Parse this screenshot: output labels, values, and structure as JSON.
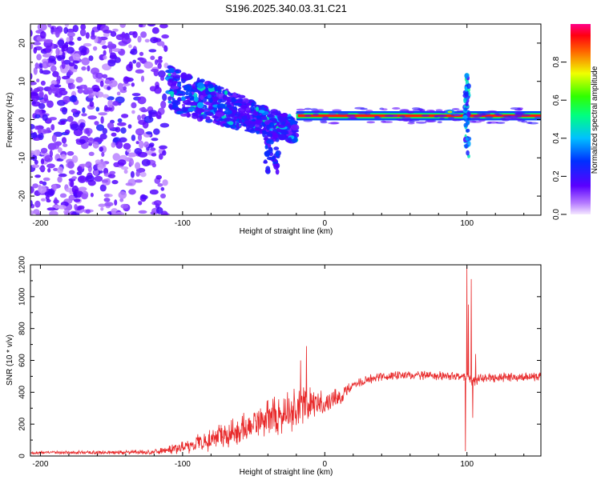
{
  "title": "S196.2025.340.03.31.C21",
  "colors": {
    "signal": "#e8001c",
    "snr_line": "#e8292a",
    "scatter": "#7a00e0",
    "frame": "#000000"
  },
  "chart_data": [
    {
      "type": "heatmap",
      "title": "S196.2025.340.03.31.C21",
      "xlabel": "Height of straight line (km)",
      "ylabel": "Frequency (Hz)",
      "xlim": [
        -207,
        152
      ],
      "ylim": [
        -25,
        25
      ],
      "xticks": [
        -200,
        -100,
        0,
        100
      ],
      "xtick_labels": [
        "-200",
        "-100",
        "0",
        "100"
      ],
      "yticks": [
        20,
        10,
        0,
        -10,
        -20
      ],
      "ytick_labels": [
        "20",
        "10",
        "0",
        "-10",
        "-20"
      ],
      "colorbar": {
        "label": "Normalized spectral amplitude",
        "ticks": [
          0.0,
          0.2,
          0.4,
          0.6,
          0.8
        ],
        "tick_labels": [
          "0.0",
          "0.2",
          "0.4",
          "0.6",
          "0.8"
        ],
        "range": [
          0,
          1
        ]
      },
      "features": [
        {
          "name": "noise",
          "x_range": [
            -207,
            -110
          ],
          "freq_range": [
            -25,
            25
          ],
          "amplitude": 0.2
        },
        {
          "name": "chirp",
          "x_range": [
            -110,
            -20
          ],
          "freq_start": 8,
          "freq_end": -3,
          "amplitude": 0.45
        },
        {
          "name": "tone",
          "x_range": [
            -20,
            152
          ],
          "freq": 1,
          "amplitude": 0.95
        },
        {
          "name": "spike",
          "x": 100,
          "freq_range": [
            -10,
            12
          ],
          "amplitude": 0.5
        }
      ]
    },
    {
      "type": "line",
      "xlabel": "Height of straight line (km)",
      "ylabel": "SNR (10 * v/v)",
      "xlim": [
        -207,
        152
      ],
      "ylim": [
        0,
        1200
      ],
      "xticks": [
        -200,
        -100,
        0,
        100
      ],
      "xtick_labels": [
        "-200",
        "-100",
        "0",
        "100"
      ],
      "yticks": [
        0,
        200,
        400,
        600,
        800,
        1000,
        1200
      ],
      "ytick_labels": [
        "0",
        "200",
        "400",
        "600",
        "800",
        "1000",
        "1200"
      ],
      "series": [
        {
          "name": "SNR",
          "envelope_x": [
            -207,
            -120,
            -100,
            -80,
            -60,
            -40,
            -25,
            -15,
            0,
            10,
            20,
            30,
            40,
            60,
            80,
            95,
            100,
            103,
            106,
            110,
            130,
            152
          ],
          "envelope_y": [
            20,
            25,
            50,
            100,
            170,
            240,
            280,
            320,
            330,
            370,
            440,
            480,
            500,
            505,
            505,
            505,
            500,
            470,
            480,
            490,
            495,
            500
          ],
          "noise_amp": [
            10,
            15,
            40,
            80,
            100,
            120,
            140,
            120,
            80,
            60,
            30,
            30,
            30,
            30,
            30,
            30,
            30,
            30,
            40,
            30,
            30,
            30
          ],
          "spikes": [
            {
              "x": -17,
              "y": 600
            },
            {
              "x": -13,
              "y": 690
            },
            {
              "x": 99,
              "y": 30
            },
            {
              "x": 100,
              "y": 1190
            },
            {
              "x": 101,
              "y": 950
            },
            {
              "x": 103,
              "y": 1110
            },
            {
              "x": 104,
              "y": 240
            },
            {
              "x": 106,
              "y": 640
            }
          ]
        }
      ]
    }
  ]
}
